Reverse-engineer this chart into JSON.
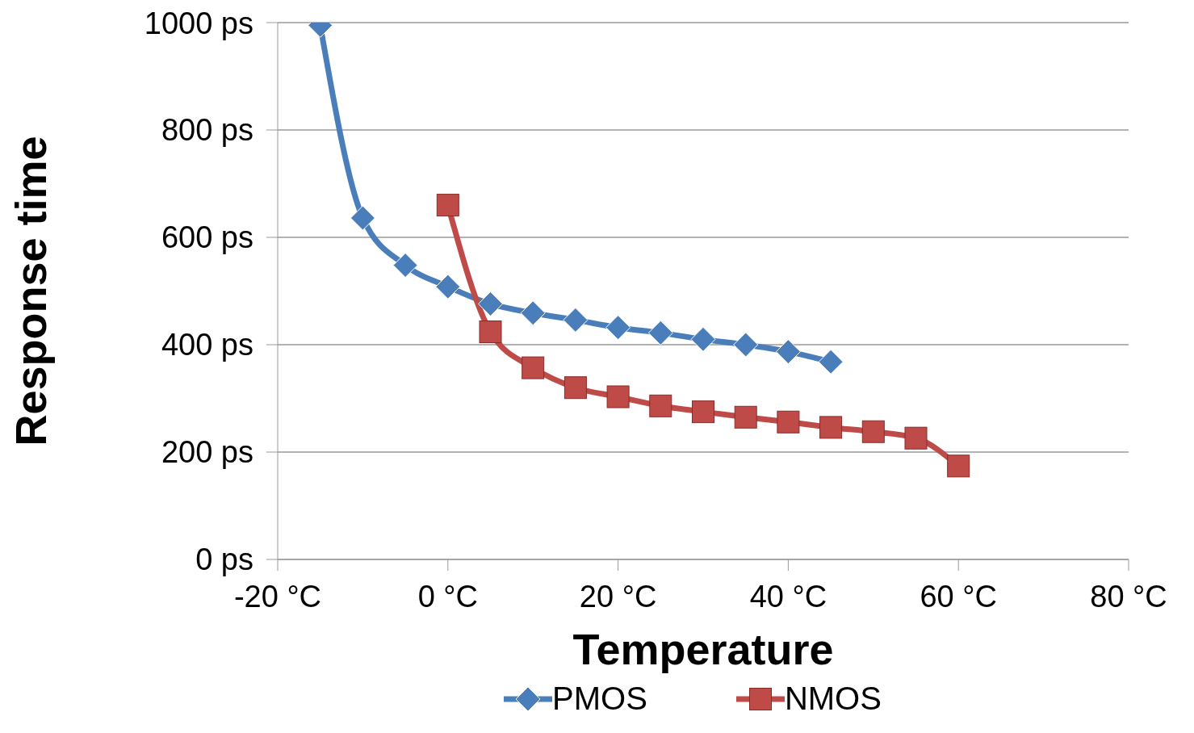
{
  "chart_data": {
    "type": "line",
    "xlabel": "Temperature",
    "ylabel": "Response time",
    "xlim": [
      -20,
      80
    ],
    "xticks": [
      {
        "value": -20,
        "label": "-20 °C"
      },
      {
        "value": 0,
        "label": "0 °C"
      },
      {
        "value": 20,
        "label": "20 °C"
      },
      {
        "value": 40,
        "label": "40 °C"
      },
      {
        "value": 60,
        "label": "60 °C"
      },
      {
        "value": 80,
        "label": "80 °C"
      }
    ],
    "ylim": [
      0,
      1000
    ],
    "yticks": [
      {
        "value": 0,
        "label": "0 ps"
      },
      {
        "value": 200,
        "label": "200 ps"
      },
      {
        "value": 400,
        "label": "400 ps"
      },
      {
        "value": 600,
        "label": "600 ps"
      },
      {
        "value": 800,
        "label": "800 ps"
      },
      {
        "value": 1000,
        "label": "1000 ps"
      }
    ],
    "grid": "y",
    "legend": "bottom",
    "line_style": "solid",
    "series": [
      {
        "name": "PMOS",
        "color": "#4a7ebb",
        "marker": "diamond",
        "x": [
          -15,
          -10,
          -5,
          0,
          5,
          10,
          15,
          20,
          25,
          30,
          35,
          40,
          45
        ],
        "values": [
          995,
          636,
          548,
          508,
          476,
          459,
          446,
          432,
          422,
          410,
          400,
          387,
          368
        ]
      },
      {
        "name": "NMOS",
        "color": "#be4b48",
        "marker": "square",
        "x": [
          0,
          5,
          10,
          15,
          20,
          25,
          30,
          35,
          40,
          45,
          50,
          55,
          60
        ],
        "values": [
          660,
          424,
          357,
          320,
          303,
          286,
          275,
          265,
          256,
          246,
          238,
          226,
          174
        ]
      }
    ]
  }
}
